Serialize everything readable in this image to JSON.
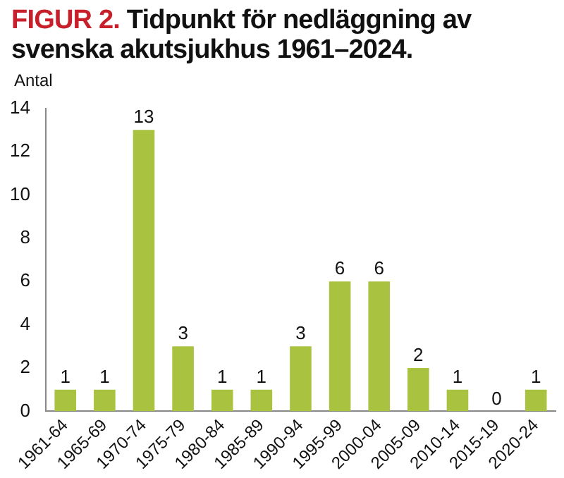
{
  "chart_data": {
    "type": "bar",
    "title": "FIGUR 2. Tidpunkt för nedläggning av svenska akutsjukhus 1961–2024.",
    "ylabel": "Antal",
    "categories": [
      "1961-64",
      "1965-69",
      "1970-74",
      "1975-79",
      "1980-84",
      "1985-89",
      "1990-94",
      "1995-99",
      "2000-04",
      "2005-09",
      "2010-14",
      "2015-19",
      "2020-24"
    ],
    "values": [
      1,
      1,
      13,
      3,
      1,
      1,
      3,
      6,
      6,
      2,
      1,
      0,
      1
    ],
    "color": "#a9c23f",
    "ylim": [
      0,
      14
    ],
    "yticks": [
      0,
      2,
      4,
      6,
      8,
      10,
      12,
      14
    ],
    "grid": false,
    "legend": false,
    "data_labels": true
  }
}
